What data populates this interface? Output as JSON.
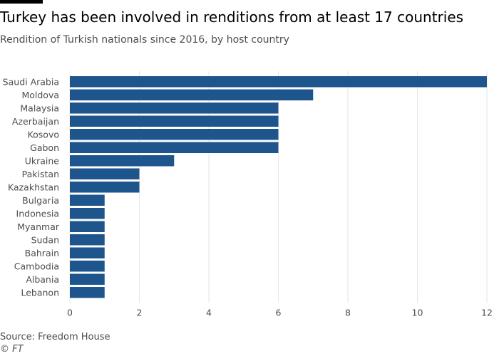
{
  "chart_data": {
    "type": "bar",
    "orientation": "horizontal",
    "title": "Turkey has been involved in renditions from at least 17 countries",
    "subtitle": "Rendition of Turkish nationals since 2016, by host country",
    "categories": [
      "Saudi Arabia",
      "Moldova",
      "Malaysia",
      "Azerbaijan",
      "Kosovo",
      "Gabon",
      "Ukraine",
      "Pakistan",
      "Kazakhstan",
      "Bulgaria",
      "Indonesia",
      "Myanmar",
      "Sudan",
      "Bahrain",
      "Cambodia",
      "Albania",
      "Lebanon"
    ],
    "values": [
      12,
      7,
      6,
      6,
      6,
      6,
      3,
      2,
      2,
      1,
      1,
      1,
      1,
      1,
      1,
      1,
      1
    ],
    "xlim": [
      0,
      12
    ],
    "xticks": [
      0,
      2,
      4,
      6,
      8,
      10,
      12
    ],
    "xlabel": "",
    "ylabel": "",
    "grid": "vertical",
    "legend": "none",
    "bar_color": "#1e558c",
    "grid_color": "#e6e6e6"
  },
  "source": "Source: Freedom House",
  "credit": "© FT"
}
